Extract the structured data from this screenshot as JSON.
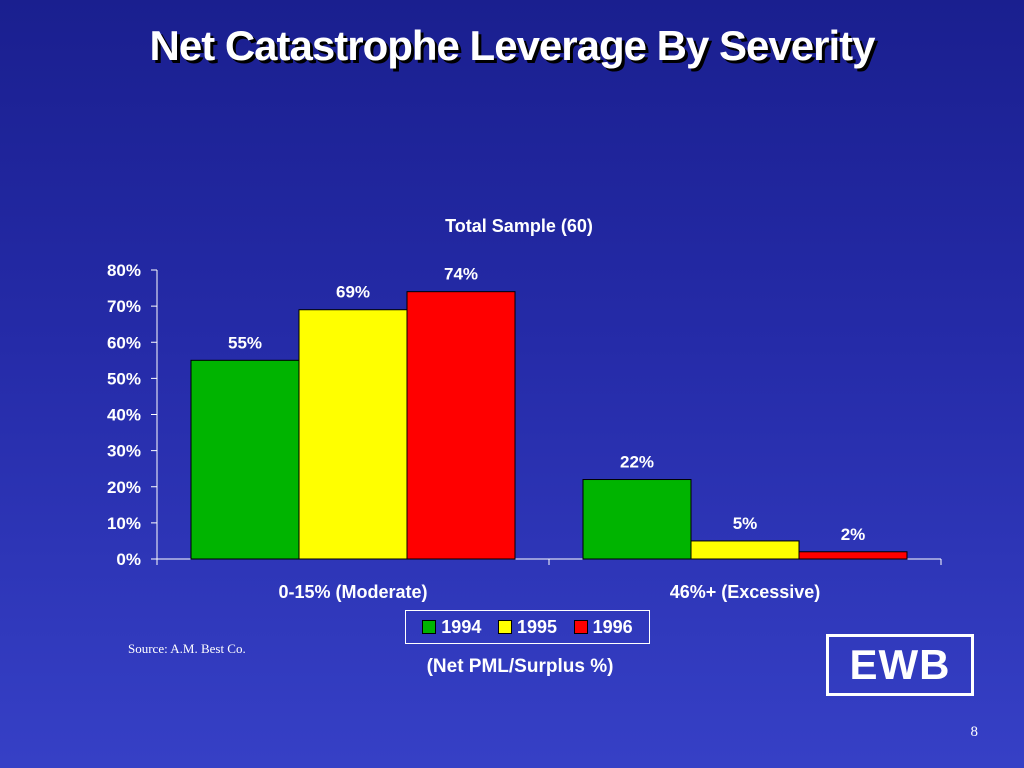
{
  "slide": {
    "title": "Net Catastrophe Leverage By Severity",
    "source": "Source: A.M. Best Co.",
    "page_number": "8",
    "logo_text": "EWB"
  },
  "chart_data": {
    "type": "bar",
    "title": "Total Sample (60)",
    "xlabel": "(Net PML/Surplus %)",
    "ylabel": "",
    "categories": [
      "0-15% (Moderate)",
      "46%+ (Excessive)"
    ],
    "series": [
      {
        "name": "1994",
        "color": "#00b400",
        "values": [
          55,
          22
        ],
        "labels": [
          "55%",
          "22%"
        ]
      },
      {
        "name": "1995",
        "color": "#ffff00",
        "values": [
          69,
          5
        ],
        "labels": [
          "69%",
          "5%"
        ]
      },
      {
        "name": "1996",
        "color": "#ff0000",
        "values": [
          74,
          2
        ],
        "labels": [
          "74%",
          "2%"
        ]
      }
    ],
    "ylim": [
      0,
      80
    ],
    "yticks": [
      0,
      10,
      20,
      30,
      40,
      50,
      60,
      70,
      80
    ],
    "ytick_labels": [
      "0%",
      "10%",
      "20%",
      "30%",
      "40%",
      "50%",
      "60%",
      "70%",
      "80%"
    ],
    "grid": false,
    "legend_position": "bottom-center"
  }
}
